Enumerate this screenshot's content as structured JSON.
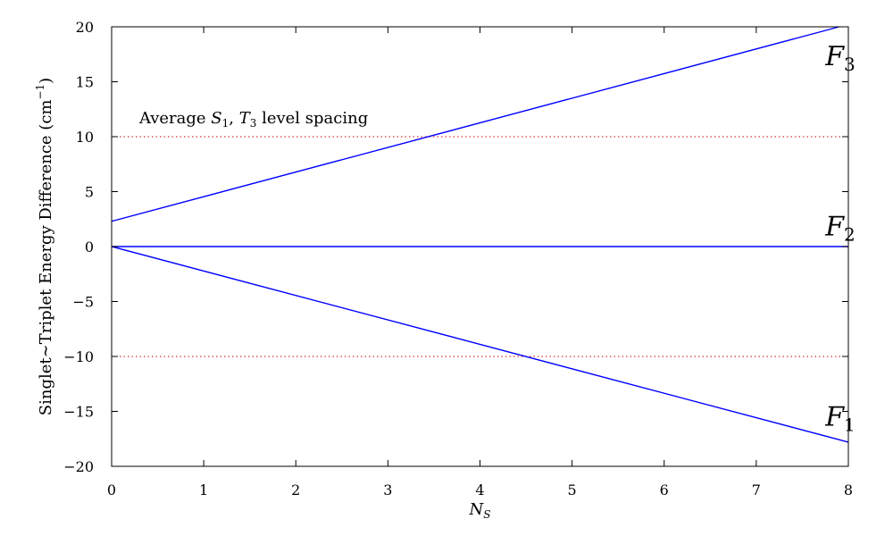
{
  "chart_data": {
    "type": "line",
    "xlabel": "N",
    "xlabel_sub": "S",
    "ylabel": "Singlet∼Triplet Energy Difference (cm",
    "ylabel_sup": "−1",
    "ylabel_end": ")",
    "xlim": [
      0,
      8
    ],
    "ylim": [
      -20,
      20
    ],
    "xticks": [
      0,
      1,
      2,
      3,
      4,
      5,
      6,
      7,
      8
    ],
    "yticks": [
      -20,
      -15,
      -10,
      -5,
      0,
      5,
      10,
      15,
      20
    ],
    "ytick_labels": [
      "−20",
      "−15",
      "−10",
      "−5",
      "0",
      "5",
      "10",
      "15",
      "20"
    ],
    "grid": false,
    "series": [
      {
        "name": "F",
        "sub": "3",
        "color": "#0000ff",
        "x": [
          0,
          7.9
        ],
        "y": [
          2.3,
          20
        ],
        "label_at": [
          7.75,
          16.5
        ]
      },
      {
        "name": "F",
        "sub": "2",
        "color": "#0000ff",
        "x": [
          0,
          8
        ],
        "y": [
          0,
          0
        ],
        "label_at": [
          7.75,
          1.0
        ]
      },
      {
        "name": "F",
        "sub": "1",
        "color": "#0000ff",
        "x": [
          0,
          8
        ],
        "y": [
          0,
          -17.8
        ],
        "label_at": [
          7.75,
          -16.3
        ]
      }
    ],
    "reference_lines": [
      {
        "y": 10,
        "color": "#cc0000",
        "style": "dotted"
      },
      {
        "y": -10,
        "color": "#cc0000",
        "style": "dotted"
      }
    ],
    "annotation": {
      "prefix": "Average ",
      "s": "S",
      "s_sub": "1",
      "sep": ", ",
      "t": "T",
      "t_sub": "3",
      "suffix": " level spacing",
      "x": 0.3,
      "y": 11.2
    }
  }
}
